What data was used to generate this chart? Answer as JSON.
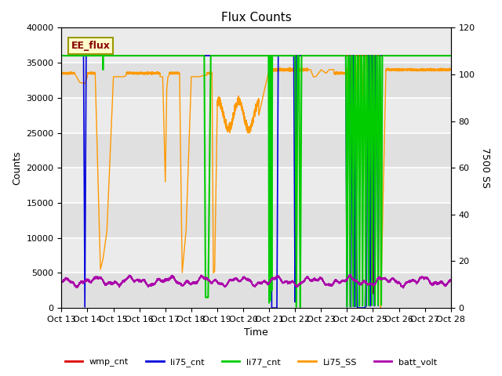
{
  "title": "Flux Counts",
  "ylabel_left": "Counts",
  "ylabel_right": "7500 SS",
  "xlabel": "Time",
  "ylim_left": [
    0,
    40000
  ],
  "ylim_right": [
    0,
    120
  ],
  "annotation_text": "EE_flux",
  "bg_color": "#e8e8e8",
  "bg_color2": "#d8d8d8",
  "grid_color": "#ffffff",
  "series": {
    "wmp_cnt": {
      "color": "#dd0000",
      "lw": 1.2
    },
    "li75_cnt": {
      "color": "#0000dd",
      "lw": 1.2
    },
    "li77_cnt": {
      "color": "#00cc00",
      "lw": 1.5
    },
    "Li75_SS": {
      "color": "#ff9900",
      "lw": 1.0
    },
    "batt_volt": {
      "color": "#aa00aa",
      "lw": 1.0
    }
  },
  "legend_entries": [
    "wmp_cnt",
    "li75_cnt",
    "li77_cnt",
    "Li75_SS",
    "batt_volt"
  ],
  "legend_colors": [
    "#dd0000",
    "#0000dd",
    "#00cc00",
    "#ff9900",
    "#aa00aa"
  ],
  "xtick_labels": [
    "Oct 13",
    "Oct 14",
    "Oct 15",
    "Oct 16",
    "Oct 17",
    "Oct 18",
    "Oct 19",
    "Oct 20",
    "Oct 21",
    "Oct 22",
    "Oct 23",
    "Oct 24",
    "Oct 25",
    "Oct 26",
    "Oct 27",
    "Oct 28"
  ],
  "ytick_left": [
    0,
    5000,
    10000,
    15000,
    20000,
    25000,
    30000,
    35000,
    40000
  ],
  "ytick_right": [
    0,
    20,
    40,
    60,
    80,
    100,
    120
  ]
}
